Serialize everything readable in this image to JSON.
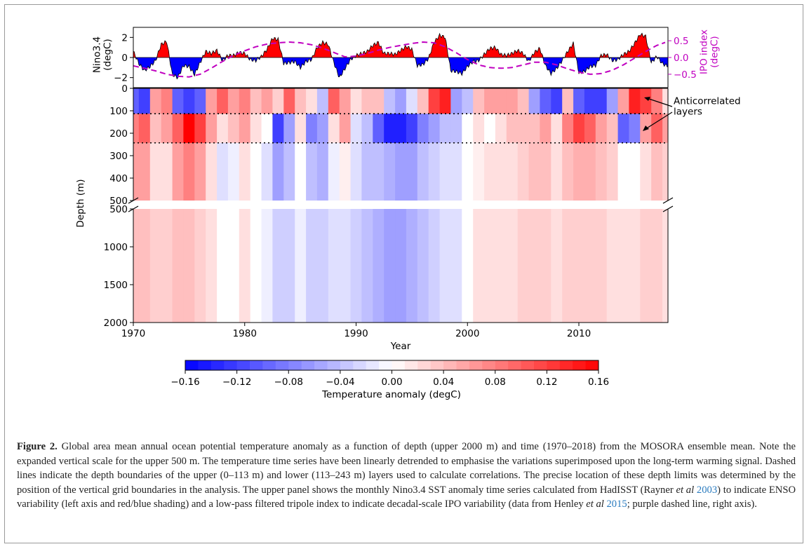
{
  "chart_data": [
    {
      "type": "area",
      "panel": "top",
      "ylabel_left": "Nino3.4\n(degC)",
      "ylabel_right": "IPO index\n(degC)",
      "xlim": [
        1970,
        2018
      ],
      "ylim_left": [
        -3,
        3
      ],
      "yticks_left": [
        "2",
        "0",
        "−2"
      ],
      "ylim_right": [
        -0.9,
        0.9
      ],
      "yticks_right": [
        "0.5",
        "0.0",
        "−0.5"
      ],
      "colors": {
        "positive": "#ff0000",
        "negative": "#0000ff",
        "ipo": "#c000c0"
      },
      "series": [
        {
          "name": "Nino3.4",
          "axis": "left",
          "style": "filled red/blue",
          "x": [
            1970.0,
            1970.5,
            1971.0,
            1971.5,
            1972.0,
            1972.5,
            1973.0,
            1973.5,
            1974.0,
            1974.5,
            1975.0,
            1975.5,
            1976.0,
            1976.5,
            1977.0,
            1977.5,
            1978.0,
            1978.5,
            1979.0,
            1979.5,
            1980.0,
            1980.5,
            1981.0,
            1981.5,
            1982.0,
            1982.5,
            1983.0,
            1983.5,
            1984.0,
            1984.5,
            1985.0,
            1985.5,
            1986.0,
            1986.5,
            1987.0,
            1987.5,
            1988.0,
            1988.5,
            1989.0,
            1989.5,
            1990.0,
            1990.5,
            1991.0,
            1991.5,
            1992.0,
            1992.5,
            1993.0,
            1993.5,
            1994.0,
            1994.5,
            1995.0,
            1995.5,
            1996.0,
            1996.5,
            1997.0,
            1997.5,
            1998.0,
            1998.5,
            1999.0,
            1999.5,
            2000.0,
            2000.5,
            2001.0,
            2001.5,
            2002.0,
            2002.5,
            2003.0,
            2003.5,
            2004.0,
            2004.5,
            2005.0,
            2005.5,
            2006.0,
            2006.5,
            2007.0,
            2007.5,
            2008.0,
            2008.5,
            2009.0,
            2009.5,
            2010.0,
            2010.5,
            2011.0,
            2011.5,
            2012.0,
            2012.5,
            2013.0,
            2013.5,
            2014.0,
            2014.5,
            2015.0,
            2015.5,
            2016.0,
            2016.5,
            2017.0,
            2017.5,
            2018.0
          ],
          "values": [
            0.6,
            -0.6,
            -1.3,
            -0.9,
            -0.3,
            1.3,
            1.6,
            -1.7,
            -2.0,
            -0.8,
            -0.9,
            -1.7,
            -0.5,
            0.6,
            0.4,
            0.7,
            -0.3,
            0.2,
            0.2,
            0.5,
            0.4,
            -0.2,
            -0.3,
            0.1,
            0.8,
            1.9,
            1.8,
            -0.6,
            -0.5,
            -0.4,
            -1.0,
            -0.4,
            -0.2,
            1.0,
            1.5,
            1.3,
            -0.5,
            -2.0,
            -1.1,
            -0.2,
            0.2,
            0.4,
            0.6,
            1.2,
            1.5,
            0.4,
            0.4,
            0.3,
            0.7,
            1.1,
            0.8,
            -0.8,
            -0.7,
            -0.1,
            1.5,
            2.2,
            2.0,
            -1.3,
            -1.4,
            -1.6,
            -0.9,
            -0.4,
            -0.3,
            0.3,
            0.9,
            1.0,
            0.3,
            0.2,
            0.4,
            0.7,
            0.4,
            -0.4,
            0.5,
            0.9,
            -0.8,
            -1.6,
            -1.1,
            -0.3,
            0.6,
            1.4,
            -1.5,
            -1.4,
            -0.9,
            -0.8,
            0.2,
            0.3,
            -0.3,
            -0.2,
            0.3,
            0.6,
            1.4,
            2.3,
            2.1,
            -0.5,
            0.1,
            -0.6,
            -0.9
          ]
        },
        {
          "name": "IPO index",
          "axis": "right",
          "style": "purple dashed line",
          "x": [
            1970,
            1971,
            1972,
            1973,
            1974,
            1975,
            1976,
            1977,
            1978,
            1979,
            1980,
            1981,
            1982,
            1983,
            1984,
            1985,
            1986,
            1987,
            1988,
            1989,
            1990,
            1991,
            1992,
            1993,
            1994,
            1995,
            1996,
            1997,
            1998,
            1999,
            2000,
            2001,
            2002,
            2003,
            2004,
            2005,
            2006,
            2007,
            2008,
            2009,
            2010,
            2011,
            2012,
            2013,
            2014,
            2015,
            2016,
            2017,
            2018
          ],
          "values": [
            -0.25,
            -0.32,
            -0.4,
            -0.5,
            -0.56,
            -0.58,
            -0.5,
            -0.32,
            -0.12,
            0.06,
            0.2,
            0.32,
            0.4,
            0.44,
            0.46,
            0.44,
            0.38,
            0.28,
            0.15,
            0.02,
            0.04,
            0.12,
            0.22,
            0.3,
            0.36,
            0.42,
            0.46,
            0.44,
            0.32,
            0.14,
            -0.06,
            -0.22,
            -0.3,
            -0.32,
            -0.3,
            -0.22,
            -0.14,
            -0.14,
            -0.22,
            -0.34,
            -0.44,
            -0.5,
            -0.48,
            -0.38,
            -0.22,
            -0.02,
            0.18,
            0.36,
            0.48
          ]
        }
      ]
    },
    {
      "type": "heatmap",
      "panel": "main",
      "xlabel": "Year",
      "ylabel": "Depth (m)",
      "xlim": [
        1970,
        2018
      ],
      "xticks": [
        "1970",
        "1980",
        "1990",
        "2000",
        "2010"
      ],
      "upper_ylim": [
        0,
        500
      ],
      "upper_yticks": [
        "0",
        "100",
        "200",
        "300",
        "400",
        "500"
      ],
      "lower_ylim": [
        500,
        2000
      ],
      "lower_yticks": [
        "500",
        "1000",
        "1500",
        "2000"
      ],
      "dotted_lines_depth_m": [
        113,
        243
      ],
      "color_range": [
        -0.16,
        0.16
      ],
      "years": [
        1970,
        1971,
        1972,
        1973,
        1974,
        1975,
        1976,
        1977,
        1978,
        1979,
        1980,
        1981,
        1982,
        1983,
        1984,
        1985,
        1986,
        1987,
        1988,
        1989,
        1990,
        1991,
        1992,
        1993,
        1994,
        1995,
        1996,
        1997,
        1998,
        1999,
        2000,
        2001,
        2002,
        2003,
        2004,
        2005,
        2006,
        2007,
        2008,
        2009,
        2010,
        2011,
        2012,
        2013,
        2014,
        2015,
        2016,
        2017,
        2018
      ],
      "layers": {
        "upper_0_113m": [
          -0.1,
          -0.12,
          0.06,
          0.08,
          -0.1,
          -0.12,
          -0.1,
          0.06,
          0.1,
          0.06,
          0.08,
          0.04,
          0.06,
          0.03,
          0.1,
          0.04,
          0.02,
          -0.04,
          0.1,
          0.06,
          0.02,
          0.04,
          0.04,
          -0.04,
          -0.06,
          -0.02,
          0.04,
          0.12,
          0.14,
          -0.06,
          -0.04,
          0.04,
          0.06,
          0.06,
          0.06,
          0.04,
          -0.06,
          -0.1,
          -0.12,
          0.04,
          -0.1,
          -0.12,
          -0.12,
          -0.06,
          0.06,
          0.14,
          0.12,
          0.08,
          0.02
        ],
        "lower_113_243m": [
          0.08,
          0.1,
          0.04,
          0.06,
          0.1,
          0.16,
          0.12,
          0.06,
          0.02,
          0.04,
          0.06,
          0.02,
          0.0,
          -0.12,
          -0.06,
          0.02,
          -0.08,
          -0.06,
          0.02,
          0.06,
          -0.02,
          -0.04,
          -0.1,
          -0.14,
          -0.14,
          -0.12,
          -0.08,
          -0.06,
          -0.04,
          -0.04,
          0.0,
          0.02,
          0.0,
          0.02,
          0.04,
          0.04,
          0.04,
          0.06,
          0.02,
          0.08,
          0.12,
          0.1,
          0.06,
          0.04,
          -0.1,
          -0.08,
          0.06,
          0.1,
          0.06
        ],
        "mid_243_500m": [
          0.06,
          0.06,
          0.02,
          0.02,
          0.06,
          0.08,
          0.06,
          0.02,
          -0.02,
          -0.01,
          0.02,
          0.0,
          -0.02,
          -0.06,
          -0.04,
          0.0,
          -0.04,
          -0.05,
          -0.01,
          0.01,
          -0.02,
          -0.04,
          -0.04,
          -0.05,
          -0.06,
          -0.06,
          -0.04,
          -0.03,
          -0.02,
          -0.02,
          0.0,
          0.01,
          0.02,
          0.02,
          0.02,
          0.03,
          0.04,
          0.04,
          0.02,
          0.04,
          0.05,
          0.05,
          0.04,
          0.03,
          0.0,
          0.0,
          0.02,
          0.04,
          0.03
        ],
        "deep_500_2000m": [
          0.04,
          0.04,
          0.03,
          0.03,
          0.04,
          0.04,
          0.03,
          0.02,
          0.0,
          0.0,
          0.02,
          0.0,
          -0.01,
          -0.03,
          -0.03,
          -0.01,
          -0.03,
          -0.03,
          -0.02,
          -0.02,
          -0.03,
          -0.04,
          -0.05,
          -0.06,
          -0.06,
          -0.05,
          -0.04,
          -0.03,
          -0.02,
          -0.02,
          0.0,
          0.02,
          0.02,
          0.02,
          0.02,
          0.03,
          0.03,
          0.03,
          0.02,
          0.03,
          0.03,
          0.03,
          0.03,
          0.02,
          0.02,
          0.02,
          0.03,
          0.03,
          0.02
        ]
      },
      "annotation": "Anticorrelated\nlayers"
    },
    {
      "type": "colorbar",
      "xlabel": "Temperature anomaly (degC)",
      "range": [
        -0.16,
        0.16
      ],
      "ticks": [
        "−0.16",
        "−0.12",
        "−0.08",
        "−0.04",
        "0.00",
        "0.04",
        "0.08",
        "0.12",
        "0.16"
      ]
    }
  ],
  "caption": {
    "label": "Figure 2.",
    "p1": " Global area mean annual ocean potential temperature anomaly as a function of depth (upper 2000 m) and time (1970–2018) from the MOSORA ensemble mean. Note the expanded vertical scale for the upper 500 m. The temperature time series have been linearly detrended to emphasise the variations superimposed upon the long-term warming signal. Dashed lines indicate the depth boundaries of the upper (0–113 m) and lower (113–243 m) layers used to calculate correlations. The precise location of these depth limits was determined by the position of the vertical grid boundaries in the analysis. The upper panel shows the monthly Nino3.4 SST anomaly time series calculated from HadISST (Rayner ",
    "etal1": "et al",
    "ref1": " 2003",
    "p2": ") to indicate ENSO variability (left axis and red/blue shading) and a low-pass filtered tripole index to indicate decadal-scale IPO variability (data from Henley ",
    "etal2": "et al",
    "ref2": " 2015",
    "p3": "; purple dashed line, right axis)."
  }
}
